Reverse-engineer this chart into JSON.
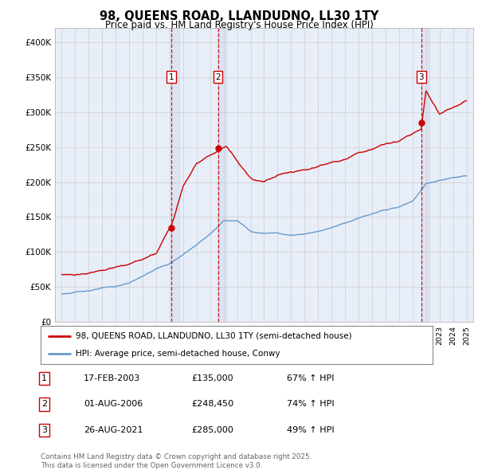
{
  "title": "98, QUEENS ROAD, LLANDUDNO, LL30 1TY",
  "subtitle": "Price paid vs. HM Land Registry's House Price Index (HPI)",
  "background_color": "#ffffff",
  "plot_bg_color": "#e8eef8",
  "grid_color": "#cccccc",
  "ylim": [
    0,
    420000
  ],
  "yticks": [
    0,
    50000,
    100000,
    150000,
    200000,
    250000,
    300000,
    350000,
    400000
  ],
  "ytick_labels": [
    "£0",
    "£50K",
    "£100K",
    "£150K",
    "£200K",
    "£250K",
    "£300K",
    "£350K",
    "£400K"
  ],
  "sale_dates_num": [
    2003.12,
    2006.58,
    2021.65
  ],
  "sale_prices": [
    135000,
    248450,
    285000
  ],
  "sale_labels": [
    "1",
    "2",
    "3"
  ],
  "red_line_color": "#cc0000",
  "blue_line_color": "#6699cc",
  "legend_label_red": "98, QUEENS ROAD, LLANDUDNO, LL30 1TY (semi-detached house)",
  "legend_label_blue": "HPI: Average price, semi-detached house, Conwy",
  "table_entries": [
    {
      "num": "1",
      "date": "17-FEB-2003",
      "price": "£135,000",
      "hpi": "67% ↑ HPI"
    },
    {
      "num": "2",
      "date": "01-AUG-2006",
      "price": "£248,450",
      "hpi": "74% ↑ HPI"
    },
    {
      "num": "3",
      "date": "26-AUG-2021",
      "price": "£285,000",
      "hpi": "49% ↑ HPI"
    }
  ],
  "footer_text": "Contains HM Land Registry data © Crown copyright and database right 2025.\nThis data is licensed under the Open Government Licence v3.0.",
  "xmin": 1994.5,
  "xmax": 2025.5,
  "hpi_knots_x": [
    1995,
    1996,
    1997,
    1998,
    1999,
    2000,
    2001,
    2002,
    2003,
    2004,
    2005,
    2006,
    2007,
    2008,
    2009,
    2010,
    2011,
    2012,
    2013,
    2014,
    2015,
    2016,
    2017,
    2018,
    2019,
    2020,
    2021,
    2022,
    2023,
    2024,
    2025
  ],
  "hpi_knots_y": [
    40000,
    42000,
    45000,
    48000,
    50000,
    55000,
    65000,
    75000,
    82000,
    95000,
    110000,
    125000,
    145000,
    145000,
    130000,
    128000,
    128000,
    125000,
    128000,
    132000,
    138000,
    145000,
    152000,
    158000,
    163000,
    167000,
    175000,
    200000,
    205000,
    208000,
    210000
  ],
  "red_knots_x": [
    1995,
    1996,
    1997,
    1998,
    1999,
    2000,
    2001,
    2002,
    2003.12,
    2004,
    2005,
    2006.58,
    2007.2,
    2008,
    2009,
    2010,
    2011,
    2012,
    2013,
    2014,
    2015,
    2016,
    2017,
    2018,
    2019,
    2020,
    2021.65,
    2022,
    2023,
    2024,
    2025
  ],
  "red_knots_y": [
    68000,
    66000,
    70000,
    75000,
    78000,
    82000,
    88000,
    95000,
    135000,
    195000,
    230000,
    248450,
    255000,
    235000,
    210000,
    205000,
    215000,
    220000,
    225000,
    230000,
    238000,
    243000,
    252000,
    258000,
    265000,
    268000,
    285000,
    340000,
    305000,
    315000,
    325000
  ]
}
